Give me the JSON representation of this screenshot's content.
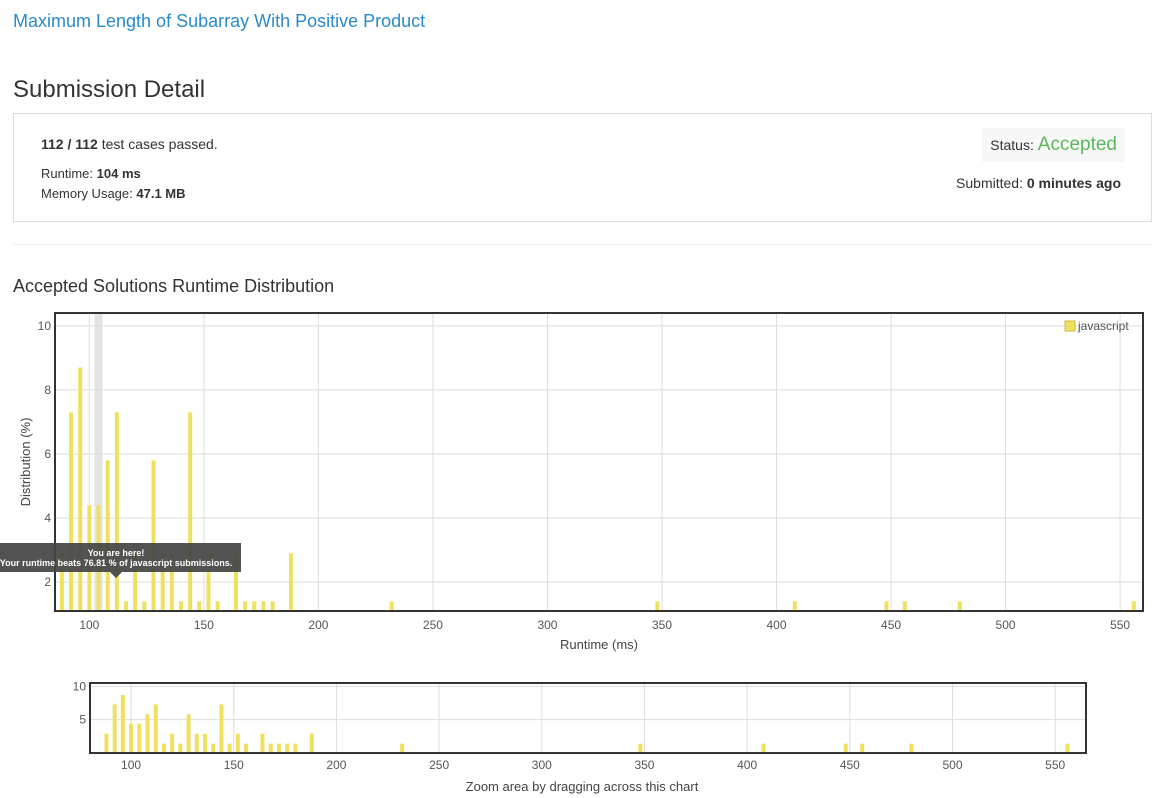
{
  "problem": {
    "title": "Maximum Length of Subarray With Positive Product"
  },
  "page": {
    "heading": "Submission Detail"
  },
  "detail": {
    "test_cases_passed": "112 / 112",
    "test_cases_suffix": "test cases passed.",
    "runtime_label": "Runtime:",
    "runtime_value": "104 ms",
    "memory_label": "Memory Usage:",
    "memory_value": "47.1 MB",
    "status_label": "Status:",
    "status_value": "Accepted",
    "submitted_label": "Submitted:",
    "submitted_value": "0 minutes ago"
  },
  "distribution": {
    "heading": "Accepted Solutions Runtime Distribution",
    "zoom_hint": "Zoom area by dragging across this chart",
    "tooltip_title": "You are here!",
    "tooltip_body": "Your runtime beats 76.81 % of javascript submissions."
  },
  "colors": {
    "bar": "#f0e060",
    "status_accepted": "#5cb85c",
    "link": "#2a8ac7"
  },
  "chart_data": [
    {
      "type": "bar",
      "title": "",
      "xlabel": "Runtime (ms)",
      "ylabel": "Distribution (%)",
      "xlim": [
        85,
        560
      ],
      "ylim": [
        1.1,
        10.4
      ],
      "xticks": [
        100,
        150,
        200,
        250,
        300,
        350,
        400,
        450,
        500,
        550
      ],
      "yticks": [
        2,
        4,
        6,
        8,
        10
      ],
      "grid": true,
      "legend": "top-right",
      "highlight_x": 104,
      "series": [
        {
          "name": "javascript",
          "x": [
            88,
            92,
            96,
            100,
            104,
            108,
            112,
            116,
            120,
            124,
            128,
            132,
            136,
            140,
            144,
            148,
            152,
            156,
            164,
            168,
            172,
            176,
            180,
            188,
            232,
            348,
            408,
            448,
            456,
            480,
            556
          ],
          "values": [
            2.9,
            7.3,
            8.7,
            4.4,
            4.4,
            5.8,
            7.3,
            1.4,
            2.9,
            1.4,
            5.8,
            2.9,
            2.9,
            1.4,
            7.3,
            1.4,
            2.9,
            1.4,
            2.9,
            1.4,
            1.4,
            1.4,
            1.4,
            2.9,
            1.4,
            1.4,
            1.4,
            1.4,
            1.4,
            1.4,
            1.4
          ]
        }
      ]
    },
    {
      "type": "bar",
      "title": "",
      "xlabel": "",
      "ylabel": "",
      "xlim": [
        80,
        565
      ],
      "ylim": [
        0,
        10.5
      ],
      "xticks": [
        100,
        150,
        200,
        250,
        300,
        350,
        400,
        450,
        500,
        550
      ],
      "yticks": [
        5,
        10
      ],
      "grid": true,
      "legend": "none",
      "series": [
        {
          "x": [
            88,
            92,
            96,
            100,
            104,
            108,
            112,
            116,
            120,
            124,
            128,
            132,
            136,
            140,
            144,
            148,
            152,
            156,
            164,
            168,
            172,
            176,
            180,
            188,
            232,
            348,
            408,
            448,
            456,
            480,
            556
          ],
          "values": [
            2.9,
            7.3,
            8.7,
            4.4,
            4.4,
            5.8,
            7.3,
            1.4,
            2.9,
            1.4,
            5.8,
            2.9,
            2.9,
            1.4,
            7.3,
            1.4,
            2.9,
            1.4,
            2.9,
            1.4,
            1.4,
            1.4,
            1.4,
            2.9,
            1.4,
            1.4,
            1.4,
            1.4,
            1.4,
            1.4,
            1.4
          ]
        }
      ]
    }
  ]
}
